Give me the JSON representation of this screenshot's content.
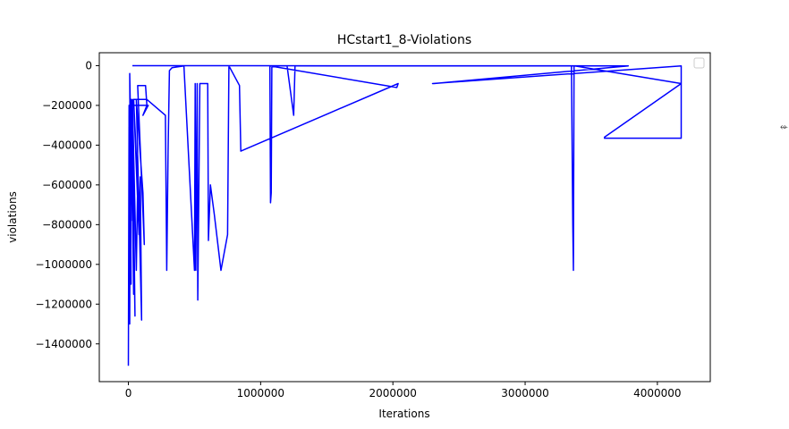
{
  "chart_data": {
    "type": "line",
    "title": "HCstart1_8-Violations",
    "xlabel": "Iterations",
    "ylabel": "violations",
    "xlim": [
      -220000,
      4400000
    ],
    "ylim": [
      -1590000,
      65000
    ],
    "xticks": [
      0,
      1000000,
      2000000,
      3000000,
      4000000
    ],
    "xtick_labels": [
      "0",
      "1000000",
      "2000000",
      "3000000",
      "4000000"
    ],
    "yticks": [
      0,
      -200000,
      -400000,
      -600000,
      -800000,
      -1000000,
      -1200000,
      -1400000
    ],
    "ytick_labels": [
      "0",
      "−200000",
      "−400000",
      "−600000",
      "−800000",
      "−1000000",
      "−1200000",
      "−1400000"
    ],
    "legend": {
      "position": "top-right",
      "entries": []
    },
    "series": [
      {
        "name": "violations",
        "color": "#0000ff",
        "x": [
          0,
          5000,
          10000,
          15000,
          20000,
          10000,
          30000,
          20000,
          40000,
          25000,
          50000,
          30000,
          60000,
          70000,
          40000,
          80000,
          90000,
          100000,
          60000,
          110000,
          120000,
          70000,
          130000,
          140000,
          110000,
          150000,
          15000,
          40000,
          60000,
          80000,
          100000,
          120000,
          140000,
          280000,
          290000,
          300000,
          310000,
          330000,
          420000,
          500000,
          505000,
          510000,
          520000,
          525000,
          540000,
          560000,
          600000,
          605000,
          620000,
          650000,
          700000,
          750000,
          760000,
          840000,
          850000,
          2040000,
          2030000,
          1070000,
          1075000,
          1080000,
          1085000,
          1090000,
          1200000,
          1250000,
          1260000,
          3350000,
          3360000,
          3365000,
          3370000,
          3375000,
          4180000,
          4180000,
          3600000,
          3600000,
          4180000,
          4180000,
          2300000,
          2310000,
          3780000,
          3780000,
          30000
        ],
        "y": [
          -1510000,
          -200000,
          -1300000,
          -180000,
          -1100000,
          -40000,
          -780000,
          -170000,
          -1150000,
          -200000,
          -1260000,
          -170000,
          -1030000,
          -600000,
          -170000,
          -850000,
          -560000,
          -1280000,
          -170000,
          -640000,
          -900000,
          -100000,
          -100000,
          -200000,
          -250000,
          -200000,
          -200000,
          -170000,
          -170000,
          -170000,
          -170000,
          -170000,
          -170000,
          -250000,
          -1030000,
          -430000,
          -25000,
          -10000,
          -1000,
          -1030000,
          -90000,
          -1030000,
          -90000,
          -1180000,
          -90000,
          -90000,
          -90000,
          -880000,
          -600000,
          -750000,
          -1030000,
          -850000,
          -1000,
          -100000,
          -430000,
          -90000,
          -110000,
          -1000,
          -690000,
          -640000,
          -1000,
          -1000,
          -1000,
          -250000,
          -1000,
          -1000,
          -800000,
          -1030000,
          -1000,
          -1000,
          -90000,
          -365000,
          -365000,
          -360000,
          -90000,
          -1000,
          -90000,
          -90000,
          -1000,
          -1000,
          0
        ]
      }
    ]
  },
  "ui": {
    "cursor_icon": "arrow-cursor-icon",
    "cursor_glyph": "⬰"
  }
}
